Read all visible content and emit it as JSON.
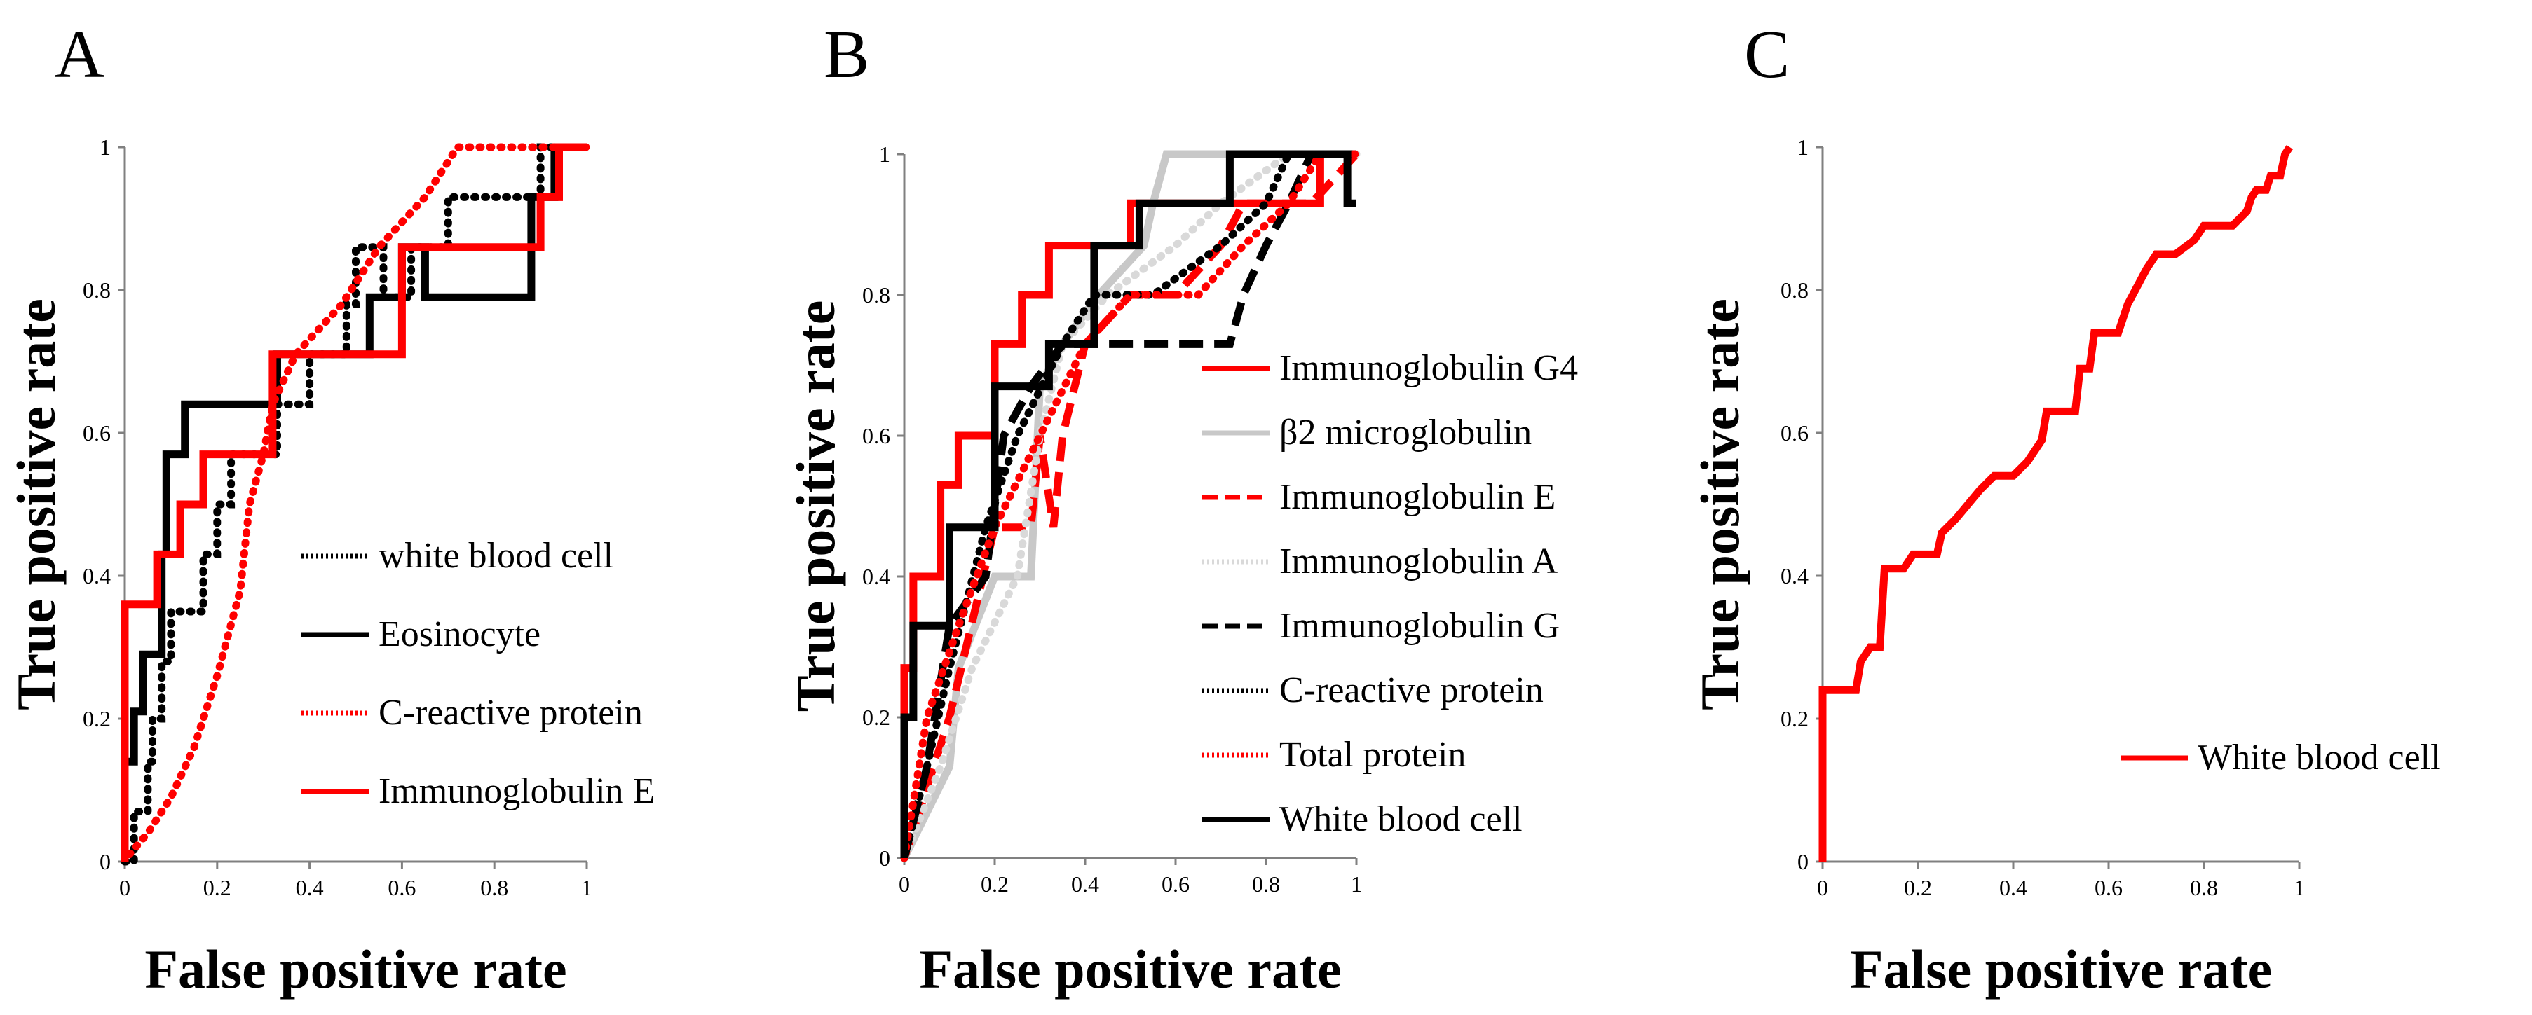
{
  "chart_data": [
    {
      "panel": "A",
      "type": "line",
      "xlabel": "False positive rate",
      "ylabel": "True positive rate",
      "xlim": [
        0,
        1
      ],
      "ylim": [
        0,
        1
      ],
      "xticks": [
        "0",
        "0.2",
        "0.4",
        "0.6",
        "0.8",
        "1"
      ],
      "yticks": [
        "0",
        "0.2",
        "0.4",
        "0.6",
        "0.8",
        "1"
      ],
      "legend_position": "center-right",
      "series": [
        {
          "name": "white blood cell",
          "color": "#000000",
          "style": "dotted",
          "points": [
            [
              0,
              0
            ],
            [
              0.02,
              0
            ],
            [
              0.02,
              0.07
            ],
            [
              0.05,
              0.07
            ],
            [
              0.05,
              0.14
            ],
            [
              0.06,
              0.14
            ],
            [
              0.06,
              0.2
            ],
            [
              0.08,
              0.2
            ],
            [
              0.08,
              0.28
            ],
            [
              0.1,
              0.28
            ],
            [
              0.1,
              0.35
            ],
            [
              0.17,
              0.35
            ],
            [
              0.17,
              0.43
            ],
            [
              0.2,
              0.43
            ],
            [
              0.2,
              0.5
            ],
            [
              0.23,
              0.5
            ],
            [
              0.23,
              0.57
            ],
            [
              0.33,
              0.57
            ],
            [
              0.33,
              0.64
            ],
            [
              0.4,
              0.64
            ],
            [
              0.4,
              0.71
            ],
            [
              0.48,
              0.71
            ],
            [
              0.48,
              0.78
            ],
            [
              0.5,
              0.78
            ],
            [
              0.5,
              0.86
            ],
            [
              0.56,
              0.86
            ],
            [
              0.56,
              0.79
            ],
            [
              0.62,
              0.79
            ],
            [
              0.62,
              0.86
            ],
            [
              0.7,
              0.86
            ],
            [
              0.7,
              0.93
            ],
            [
              0.9,
              0.93
            ],
            [
              0.9,
              1
            ],
            [
              1,
              1
            ]
          ]
        },
        {
          "name": "Eosinocyte",
          "color": "#000000",
          "style": "solid",
          "points": [
            [
              0,
              0.14
            ],
            [
              0.02,
              0.14
            ],
            [
              0.02,
              0.21
            ],
            [
              0.04,
              0.21
            ],
            [
              0.04,
              0.29
            ],
            [
              0.08,
              0.29
            ],
            [
              0.08,
              0.43
            ],
            [
              0.09,
              0.43
            ],
            [
              0.09,
              0.57
            ],
            [
              0.13,
              0.57
            ],
            [
              0.13,
              0.64
            ],
            [
              0.33,
              0.64
            ],
            [
              0.33,
              0.71
            ],
            [
              0.53,
              0.71
            ],
            [
              0.53,
              0.79
            ],
            [
              0.6,
              0.79
            ],
            [
              0.6,
              0.86
            ],
            [
              0.65,
              0.86
            ],
            [
              0.65,
              0.79
            ],
            [
              0.88,
              0.79
            ],
            [
              0.88,
              0.93
            ],
            [
              0.93,
              0.93
            ],
            [
              0.93,
              1
            ],
            [
              1,
              1
            ]
          ]
        },
        {
          "name": "C-reactive protein",
          "color": "#ff0000",
          "style": "dotted",
          "points": [
            [
              0.01,
              0.01
            ],
            [
              0.05,
              0.04
            ],
            [
              0.1,
              0.09
            ],
            [
              0.15,
              0.16
            ],
            [
              0.2,
              0.26
            ],
            [
              0.25,
              0.38
            ],
            [
              0.27,
              0.5
            ],
            [
              0.3,
              0.57
            ],
            [
              0.32,
              0.64
            ],
            [
              0.37,
              0.71
            ],
            [
              0.47,
              0.78
            ],
            [
              0.55,
              0.86
            ],
            [
              0.65,
              0.93
            ],
            [
              0.72,
              1
            ],
            [
              1,
              1
            ]
          ]
        },
        {
          "name": "Immunoglobulin E",
          "color": "#ff0000",
          "style": "solid",
          "points": [
            [
              0,
              0
            ],
            [
              0,
              0.36
            ],
            [
              0.07,
              0.36
            ],
            [
              0.07,
              0.43
            ],
            [
              0.12,
              0.43
            ],
            [
              0.12,
              0.5
            ],
            [
              0.17,
              0.5
            ],
            [
              0.17,
              0.57
            ],
            [
              0.32,
              0.57
            ],
            [
              0.32,
              0.71
            ],
            [
              0.6,
              0.71
            ],
            [
              0.6,
              0.86
            ],
            [
              0.9,
              0.86
            ],
            [
              0.9,
              0.93
            ],
            [
              0.94,
              0.93
            ],
            [
              0.94,
              1
            ],
            [
              1,
              1
            ]
          ]
        }
      ]
    },
    {
      "panel": "B",
      "type": "line",
      "xlabel": "False positive rate",
      "ylabel": "True positive rate",
      "xlim": [
        0,
        1
      ],
      "ylim": [
        0,
        1
      ],
      "xticks": [
        "0",
        "0.2",
        "0.4",
        "0.6",
        "0.8",
        "1"
      ],
      "yticks": [
        "0",
        "0.2",
        "0.4",
        "0.6",
        "0.8",
        "1"
      ],
      "legend_position": "center-right",
      "series": [
        {
          "name": "Immunoglobulin G4",
          "color": "#ff0000",
          "style": "solid",
          "points": [
            [
              0,
              0
            ],
            [
              0,
              0.27
            ],
            [
              0.02,
              0.27
            ],
            [
              0.02,
              0.4
            ],
            [
              0.08,
              0.4
            ],
            [
              0.08,
              0.53
            ],
            [
              0.12,
              0.53
            ],
            [
              0.12,
              0.6
            ],
            [
              0.2,
              0.6
            ],
            [
              0.2,
              0.73
            ],
            [
              0.26,
              0.73
            ],
            [
              0.26,
              0.8
            ],
            [
              0.32,
              0.8
            ],
            [
              0.32,
              0.87
            ],
            [
              0.5,
              0.87
            ],
            [
              0.5,
              0.93
            ],
            [
              0.92,
              0.93
            ],
            [
              0.92,
              1
            ],
            [
              1,
              1
            ]
          ]
        },
        {
          "name": "β2 microglobulin",
          "color": "#c8c8c8",
          "style": "solid",
          "points": [
            [
              0,
              0
            ],
            [
              0.1,
              0.13
            ],
            [
              0.12,
              0.27
            ],
            [
              0.2,
              0.4
            ],
            [
              0.28,
              0.4
            ],
            [
              0.3,
              0.67
            ],
            [
              0.35,
              0.73
            ],
            [
              0.43,
              0.8
            ],
            [
              0.53,
              0.87
            ],
            [
              0.55,
              0.93
            ],
            [
              0.58,
              1
            ],
            [
              1,
              1
            ]
          ]
        },
        {
          "name": "Immunoglobulin E",
          "color": "#ff0000",
          "style": "dashed",
          "points": [
            [
              0,
              0
            ],
            [
              0.1,
              0.2
            ],
            [
              0.2,
              0.47
            ],
            [
              0.28,
              0.47
            ],
            [
              0.3,
              0.6
            ],
            [
              0.33,
              0.47
            ],
            [
              0.35,
              0.6
            ],
            [
              0.4,
              0.73
            ],
            [
              0.5,
              0.8
            ],
            [
              0.6,
              0.8
            ],
            [
              0.7,
              0.87
            ],
            [
              0.75,
              0.93
            ],
            [
              0.9,
              0.93
            ],
            [
              1,
              1
            ]
          ]
        },
        {
          "name": "Immunoglobulin A",
          "color": "#d9d9d9",
          "style": "dotted",
          "points": [
            [
              0,
              0
            ],
            [
              0.08,
              0.13
            ],
            [
              0.15,
              0.27
            ],
            [
              0.25,
              0.4
            ],
            [
              0.3,
              0.6
            ],
            [
              0.35,
              0.73
            ],
            [
              0.45,
              0.8
            ],
            [
              0.6,
              0.87
            ],
            [
              0.7,
              0.93
            ],
            [
              0.85,
              1
            ],
            [
              1,
              1
            ]
          ]
        },
        {
          "name": "Immunoglobulin G",
          "color": "#000000",
          "style": "dashed",
          "points": [
            [
              0,
              0
            ],
            [
              0.05,
              0.13
            ],
            [
              0.1,
              0.33
            ],
            [
              0.18,
              0.4
            ],
            [
              0.22,
              0.6
            ],
            [
              0.28,
              0.67
            ],
            [
              0.35,
              0.73
            ],
            [
              0.55,
              0.73
            ],
            [
              0.72,
              0.73
            ],
            [
              0.75,
              0.8
            ],
            [
              0.8,
              0.87
            ],
            [
              0.85,
              0.93
            ],
            [
              0.9,
              1
            ],
            [
              1,
              1
            ]
          ]
        },
        {
          "name": "C-reactive protein",
          "color": "#000000",
          "style": "dotted",
          "points": [
            [
              0,
              0
            ],
            [
              0.05,
              0.13
            ],
            [
              0.1,
              0.27
            ],
            [
              0.18,
              0.47
            ],
            [
              0.25,
              0.6
            ],
            [
              0.35,
              0.73
            ],
            [
              0.42,
              0.8
            ],
            [
              0.55,
              0.8
            ],
            [
              0.7,
              0.87
            ],
            [
              0.8,
              0.93
            ],
            [
              0.85,
              1
            ],
            [
              1,
              1
            ]
          ]
        },
        {
          "name": "Total protein",
          "color": "#ff0000",
          "style": "dotted",
          "points": [
            [
              0,
              0
            ],
            [
              0.05,
              0.2
            ],
            [
              0.12,
              0.33
            ],
            [
              0.2,
              0.47
            ],
            [
              0.3,
              0.6
            ],
            [
              0.4,
              0.73
            ],
            [
              0.5,
              0.8
            ],
            [
              0.65,
              0.8
            ],
            [
              0.75,
              0.87
            ],
            [
              0.85,
              0.93
            ],
            [
              0.92,
              1
            ],
            [
              1,
              1
            ]
          ]
        },
        {
          "name": "White blood cell",
          "color": "#000000",
          "style": "solid",
          "points": [
            [
              0,
              0
            ],
            [
              0,
              0.2
            ],
            [
              0.02,
              0.2
            ],
            [
              0.02,
              0.33
            ],
            [
              0.1,
              0.33
            ],
            [
              0.1,
              0.47
            ],
            [
              0.2,
              0.47
            ],
            [
              0.2,
              0.67
            ],
            [
              0.32,
              0.67
            ],
            [
              0.32,
              0.73
            ],
            [
              0.42,
              0.73
            ],
            [
              0.42,
              0.87
            ],
            [
              0.52,
              0.87
            ],
            [
              0.52,
              0.93
            ],
            [
              0.72,
              0.93
            ],
            [
              0.72,
              1
            ],
            [
              0.98,
              1
            ],
            [
              0.98,
              0.93
            ],
            [
              1,
              0.93
            ]
          ]
        }
      ]
    },
    {
      "panel": "C",
      "type": "line",
      "xlabel": "False positive rate",
      "ylabel": "True positive rate",
      "xlim": [
        0,
        1
      ],
      "ylim": [
        0,
        1
      ],
      "xticks": [
        "0",
        "0.2",
        "0.4",
        "0.6",
        "0.8",
        "1"
      ],
      "yticks": [
        "0",
        "0.2",
        "0.4",
        "0.6",
        "0.8",
        "1"
      ],
      "legend_position": "bottom-right",
      "series": [
        {
          "name": "White blood cell",
          "color": "#ff0000",
          "style": "solid",
          "points": [
            [
              0,
              0
            ],
            [
              0,
              0.24
            ],
            [
              0.07,
              0.24
            ],
            [
              0.08,
              0.28
            ],
            [
              0.1,
              0.3
            ],
            [
              0.12,
              0.3
            ],
            [
              0.13,
              0.41
            ],
            [
              0.17,
              0.41
            ],
            [
              0.19,
              0.43
            ],
            [
              0.24,
              0.43
            ],
            [
              0.25,
              0.46
            ],
            [
              0.28,
              0.48
            ],
            [
              0.33,
              0.52
            ],
            [
              0.36,
              0.54
            ],
            [
              0.4,
              0.54
            ],
            [
              0.43,
              0.56
            ],
            [
              0.46,
              0.59
            ],
            [
              0.47,
              0.63
            ],
            [
              0.53,
              0.63
            ],
            [
              0.54,
              0.69
            ],
            [
              0.56,
              0.69
            ],
            [
              0.57,
              0.74
            ],
            [
              0.62,
              0.74
            ],
            [
              0.64,
              0.78
            ],
            [
              0.68,
              0.83
            ],
            [
              0.7,
              0.85
            ],
            [
              0.74,
              0.85
            ],
            [
              0.78,
              0.87
            ],
            [
              0.8,
              0.89
            ],
            [
              0.86,
              0.89
            ],
            [
              0.89,
              0.91
            ],
            [
              0.9,
              0.93
            ],
            [
              0.91,
              0.94
            ],
            [
              0.93,
              0.94
            ],
            [
              0.94,
              0.96
            ],
            [
              0.96,
              0.96
            ],
            [
              0.97,
              0.99
            ],
            [
              0.98,
              1
            ]
          ]
        }
      ]
    }
  ]
}
